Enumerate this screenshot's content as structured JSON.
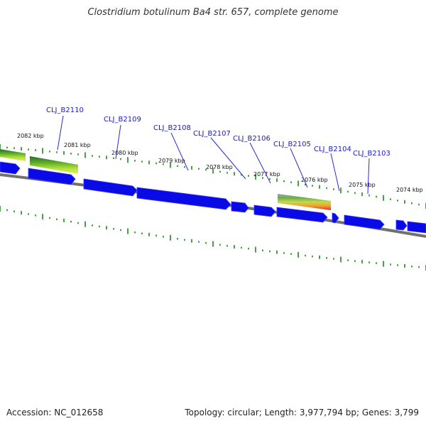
{
  "title": "Clostridium botulinum Ba4 str. 657, complete genome",
  "footer": {
    "accession": "Accession: NC_012658",
    "stats": "Topology: circular; Length: 3,977,794 bp; Genes: 3,799"
  },
  "colors": {
    "gene": "#0a0ae6",
    "gene_label": "#1a1ac8",
    "tick": "#1a8a1a",
    "backbone": "#707070"
  },
  "kbp_labels": [
    "2082 kbp",
    "2081 kbp",
    "2080 kbp",
    "2079 kbp",
    "2078 kbp",
    "2077 kbp",
    "2076 kbp",
    "2075 kbp",
    "2074 kbp"
  ],
  "gene_labels": [
    "CLJ_B2110",
    "CLJ_B2109",
    "CLJ_B2108",
    "CLJ_B2107",
    "CLJ_B2106",
    "CLJ_B2105",
    "CLJ_B2104",
    "CLJ_B2103"
  ]
}
